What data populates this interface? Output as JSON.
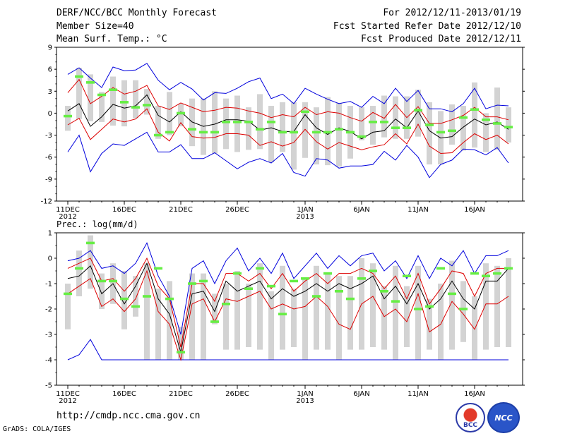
{
  "header": {
    "title": "DERF/NCC/BCC Monthly Forecast",
    "member_size": "Member Size=40",
    "variable": "Mean Surf. Temp.: °C",
    "period": "For 2012/12/11-2013/01/19",
    "start_date": "Fcst Started Refer Date 2012/12/10",
    "produced_date": "Fcst Produced Date 2012/12/11"
  },
  "footer": {
    "url": "http://cmdp.ncc.cma.gov.cn",
    "credit": "GrADS: COLA/IGES",
    "logo_bcc": "BCC",
    "logo_ncc": "NCC"
  },
  "colors": {
    "max_line": "#0000dd",
    "min_line": "#0000dd",
    "spread_line": "#dd0000",
    "mean_line": "#000000",
    "marker": "#66ee44",
    "bar": "#d3d3d3"
  },
  "chart_data": [
    {
      "type": "line",
      "title": "Mean Surf. Temp.: °C",
      "ylim": [
        -12,
        9
      ],
      "yticks": [
        9,
        6,
        3,
        0,
        -3,
        -6,
        -9,
        -12
      ],
      "x_days": 40,
      "xticks": [
        {
          "day": 0,
          "label": "11DEC",
          "sub": "2012"
        },
        {
          "day": 5,
          "label": "16DEC",
          "sub": ""
        },
        {
          "day": 10,
          "label": "21DEC",
          "sub": ""
        },
        {
          "day": 15,
          "label": "26DEC",
          "sub": ""
        },
        {
          "day": 21,
          "label": "1JAN",
          "sub": "2013"
        },
        {
          "day": 26,
          "label": "6JAN",
          "sub": ""
        },
        {
          "day": 31,
          "label": "11JAN",
          "sub": ""
        },
        {
          "day": 36,
          "label": "16JAN",
          "sub": ""
        }
      ],
      "max": [
        5.3,
        6.2,
        4.8,
        3.5,
        6.3,
        5.8,
        5.9,
        6.8,
        4.5,
        3.2,
        4.2,
        3.3,
        1.8,
        2.8,
        2.7,
        3.4,
        4.3,
        4.8,
        2.0,
        2.6,
        1.3,
        3.4,
        2.6,
        1.9,
        1.3,
        1.6,
        0.8,
        2.3,
        1.3,
        3.4,
        1.6,
        3.1,
        0.6,
        0.6,
        0.2,
        1.3,
        3.4,
        0.6,
        1.1,
        1.0
      ],
      "mean_plus": [
        2.8,
        4.6,
        1.3,
        2.3,
        3.5,
        2.6,
        3.0,
        3.8,
        1.0,
        0.5,
        1.4,
        0.8,
        0.2,
        0.4,
        0.8,
        0.7,
        0.3,
        0.0,
        -0.6,
        -0.2,
        -0.5,
        0.8,
        -0.2,
        0.2,
        0.0,
        -0.6,
        -1.1,
        0.1,
        -0.7,
        1.2,
        -0.6,
        0.9,
        -1.4,
        -1.4,
        -0.9,
        -0.3,
        0.8,
        -0.5,
        -0.5,
        -0.9
      ],
      "mean": [
        0.3,
        1.3,
        -1.8,
        -0.5,
        1.2,
        0.7,
        1.0,
        2.5,
        -0.3,
        -1.2,
        0.2,
        -1.2,
        -1.8,
        -1.5,
        -0.9,
        -0.9,
        -1.1,
        -2.3,
        -2.0,
        -2.5,
        -2.5,
        -0.2,
        -2.0,
        -2.9,
        -2.0,
        -2.5,
        -3.5,
        -2.6,
        -2.4,
        -0.8,
        -2.0,
        0.3,
        -2.4,
        -3.4,
        -3.2,
        -1.9,
        -0.8,
        -1.6,
        -1.2,
        -2.2
      ],
      "mean_minus": [
        -1.6,
        -0.7,
        -3.6,
        -2.2,
        -0.8,
        -1.2,
        -0.8,
        0.6,
        -2.6,
        -3.8,
        -1.3,
        -3.2,
        -3.4,
        -3.3,
        -2.8,
        -2.8,
        -3.0,
        -4.4,
        -3.9,
        -4.5,
        -4.0,
        -2.2,
        -3.9,
        -4.9,
        -4.0,
        -4.5,
        -5.0,
        -4.6,
        -4.3,
        -2.8,
        -4.2,
        -1.5,
        -4.5,
        -5.5,
        -5.4,
        -4.0,
        -2.8,
        -3.6,
        -3.0,
        -4.2
      ],
      "min": [
        -5.3,
        -3.0,
        -8.0,
        -5.5,
        -4.2,
        -4.4,
        -3.5,
        -2.6,
        -5.3,
        -5.3,
        -4.3,
        -6.2,
        -6.2,
        -5.4,
        -6.5,
        -7.6,
        -6.7,
        -6.2,
        -6.8,
        -5.5,
        -8.1,
        -8.6,
        -6.2,
        -6.4,
        -7.5,
        -7.2,
        -7.2,
        -7.0,
        -5.2,
        -6.4,
        -4.4,
        -6.0,
        -8.8,
        -7.0,
        -6.4,
        -4.9,
        -5.0,
        -5.7,
        -4.7,
        -6.8
      ],
      "box_top": [
        1.0,
        6.2,
        5.3,
        2.9,
        5.0,
        4.5,
        4.5,
        3.3,
        1.0,
        2.9,
        1.3,
        2.0,
        2.0,
        3.0,
        2.0,
        2.4,
        0.8,
        2.6,
        1.0,
        1.5,
        1.5,
        1.5,
        0.8,
        2.2,
        1.4,
        1.0,
        0.8,
        1.0,
        2.4,
        2.3,
        2.3,
        3.2,
        1.5,
        0.3,
        1.2,
        1.0,
        4.2,
        0.0,
        3.5,
        0.8
      ],
      "box_bottom": [
        -2.4,
        -0.8,
        -1.1,
        -1.2,
        -1.7,
        -1.8,
        -0.7,
        -0.2,
        -3.5,
        -3.0,
        -1.8,
        -4.5,
        -5.7,
        -5.5,
        -4.9,
        -5.3,
        -5.0,
        -4.9,
        -6.7,
        -5.3,
        -7.7,
        -6.1,
        -7.0,
        -7.1,
        -7.3,
        -6.2,
        -3.7,
        -4.3,
        -3.3,
        -3.5,
        -3.5,
        -3.2,
        -7.0,
        -7.0,
        -4.3,
        -5.1,
        -4.7,
        -5.3,
        -5.0,
        -4.0
      ],
      "marker": [
        -0.4,
        5.0,
        4.2,
        2.5,
        3.2,
        1.5,
        0.8,
        1.1,
        -3.0,
        -2.6,
        0.0,
        -2.2,
        -2.6,
        -2.6,
        -1.2,
        -1.2,
        -1.2,
        -2.2,
        -1.2,
        -2.6,
        -2.6,
        0.2,
        -2.6,
        -2.6,
        -2.2,
        -2.6,
        -3.2,
        -1.2,
        -1.2,
        -2.0,
        -2.0,
        0.4,
        -1.6,
        -2.6,
        -2.4,
        -0.6,
        0.5,
        -0.9,
        -1.4,
        -1.9
      ]
    },
    {
      "type": "line",
      "title": "Prec.: log(mm/d)",
      "ylim": [
        -5,
        1
      ],
      "yticks": [
        1,
        0,
        -1,
        -2,
        -3,
        -4,
        -5
      ],
      "x_days": 40,
      "max": [
        -0.1,
        0.0,
        0.3,
        -0.4,
        -0.3,
        -0.6,
        -0.2,
        0.6,
        -0.7,
        -1.5,
        -3.0,
        -0.4,
        -0.1,
        -1.0,
        -0.1,
        0.4,
        -0.5,
        0.0,
        -0.6,
        0.2,
        -0.8,
        -0.3,
        0.2,
        -0.4,
        0.1,
        -0.3,
        0.1,
        0.2,
        -0.5,
        -0.1,
        -0.8,
        0.1,
        -0.8,
        0.0,
        -0.3,
        0.3,
        -0.6,
        0.1,
        0.1,
        0.3
      ],
      "mean_plus": [
        -0.4,
        -0.2,
        0.0,
        -0.9,
        -0.8,
        -1.3,
        -0.8,
        0.0,
        -1.1,
        -1.6,
        -3.5,
        -1.0,
        -1.0,
        -1.7,
        -0.6,
        -0.6,
        -0.9,
        -0.6,
        -1.2,
        -0.6,
        -1.3,
        -0.9,
        -0.6,
        -1.0,
        -0.6,
        -0.6,
        -0.4,
        -0.6,
        -1.2,
        -0.7,
        -1.6,
        -0.6,
        -1.8,
        -1.2,
        -0.5,
        -0.6,
        -1.5,
        -0.6,
        -0.4,
        -0.4
      ],
      "mean": [
        -0.8,
        -0.7,
        -0.3,
        -1.4,
        -1.0,
        -1.8,
        -1.1,
        -0.2,
        -1.6,
        -2.2,
        -3.7,
        -1.4,
        -1.3,
        -2.1,
        -0.9,
        -1.3,
        -1.1,
        -0.9,
        -1.6,
        -1.2,
        -1.5,
        -1.3,
        -1.0,
        -1.3,
        -1.0,
        -1.2,
        -1.0,
        -0.7,
        -1.6,
        -1.1,
        -1.8,
        -1.0,
        -2.0,
        -1.6,
        -0.9,
        -1.6,
        -2.0,
        -0.9,
        -0.9,
        -0.4
      ],
      "mean_minus": [
        -1.4,
        -1.1,
        -0.8,
        -1.9,
        -1.6,
        -2.1,
        -1.6,
        -0.5,
        -2.1,
        -2.6,
        -4.0,
        -1.8,
        -1.6,
        -2.5,
        -1.6,
        -1.7,
        -1.5,
        -1.3,
        -2.0,
        -1.8,
        -2.0,
        -1.9,
        -1.5,
        -1.9,
        -2.6,
        -2.8,
        -1.8,
        -1.5,
        -2.3,
        -2.0,
        -2.5,
        -1.4,
        -2.9,
        -2.6,
        -1.7,
        -2.2,
        -2.8,
        -1.8,
        -1.8,
        -1.5
      ],
      "min": [
        -4.0,
        -3.8,
        -3.2,
        -4.0,
        -4.0,
        -4.0,
        -4.0,
        -4.0,
        -4.0,
        -4.0,
        -4.0,
        -4.0,
        -4.0,
        -4.0,
        -4.0,
        -4.0,
        -4.0,
        -4.0,
        -4.0,
        -4.0,
        -4.0,
        -4.0,
        -4.0,
        -4.0,
        -4.0,
        -4.0,
        -4.0,
        -4.0,
        -4.0,
        -4.0,
        -4.0,
        -4.0,
        -4.0,
        -4.0,
        -4.0,
        -4.0,
        -4.0,
        -4.0,
        -4.0,
        -4.0
      ],
      "box_top": [
        -1.0,
        0.3,
        0.9,
        -0.6,
        -0.2,
        -0.5,
        -0.7,
        -0.2,
        -1.2,
        -0.9,
        -2.7,
        -0.6,
        -0.6,
        -1.4,
        -1.0,
        -0.5,
        -1.0,
        -0.2,
        -1.3,
        -0.3,
        -1.2,
        -0.8,
        -0.3,
        -0.6,
        -0.7,
        -0.7,
        0.0,
        -0.2,
        -1.1,
        -0.3,
        -1.1,
        -0.3,
        -1.6,
        -1.0,
        -0.1,
        -0.9,
        -1.5,
        -0.2,
        -0.3,
        0.0
      ],
      "box_bottom": [
        -2.8,
        -1.5,
        -1.2,
        -2.0,
        -1.8,
        -2.8,
        -2.3,
        -4.0,
        -4.0,
        -4.0,
        -4.0,
        -4.0,
        -4.0,
        -2.6,
        -3.6,
        -3.6,
        -3.5,
        -3.6,
        -4.0,
        -3.6,
        -3.5,
        -4.0,
        -3.6,
        -3.6,
        -4.0,
        -3.6,
        -3.6,
        -3.5,
        -3.6,
        -4.0,
        -3.5,
        -4.0,
        -3.6,
        -4.0,
        -3.6,
        -3.3,
        -4.0,
        -3.6,
        -3.5,
        -3.5
      ],
      "marker": [
        -1.4,
        -0.4,
        0.6,
        -0.9,
        -0.9,
        -1.6,
        -1.9,
        -1.5,
        -0.4,
        -1.6,
        -3.7,
        -1.0,
        -0.9,
        -2.5,
        -1.8,
        -0.6,
        -1.2,
        -0.4,
        -1.1,
        -2.2,
        -0.9,
        -0.8,
        -1.5,
        -0.6,
        -1.3,
        -1.6,
        -0.8,
        -0.5,
        -1.3,
        -1.7,
        -0.7,
        -2.0,
        -1.9,
        -0.4,
        -1.4,
        -2.0,
        -0.6,
        -0.7,
        -0.6,
        -0.4
      ]
    }
  ]
}
